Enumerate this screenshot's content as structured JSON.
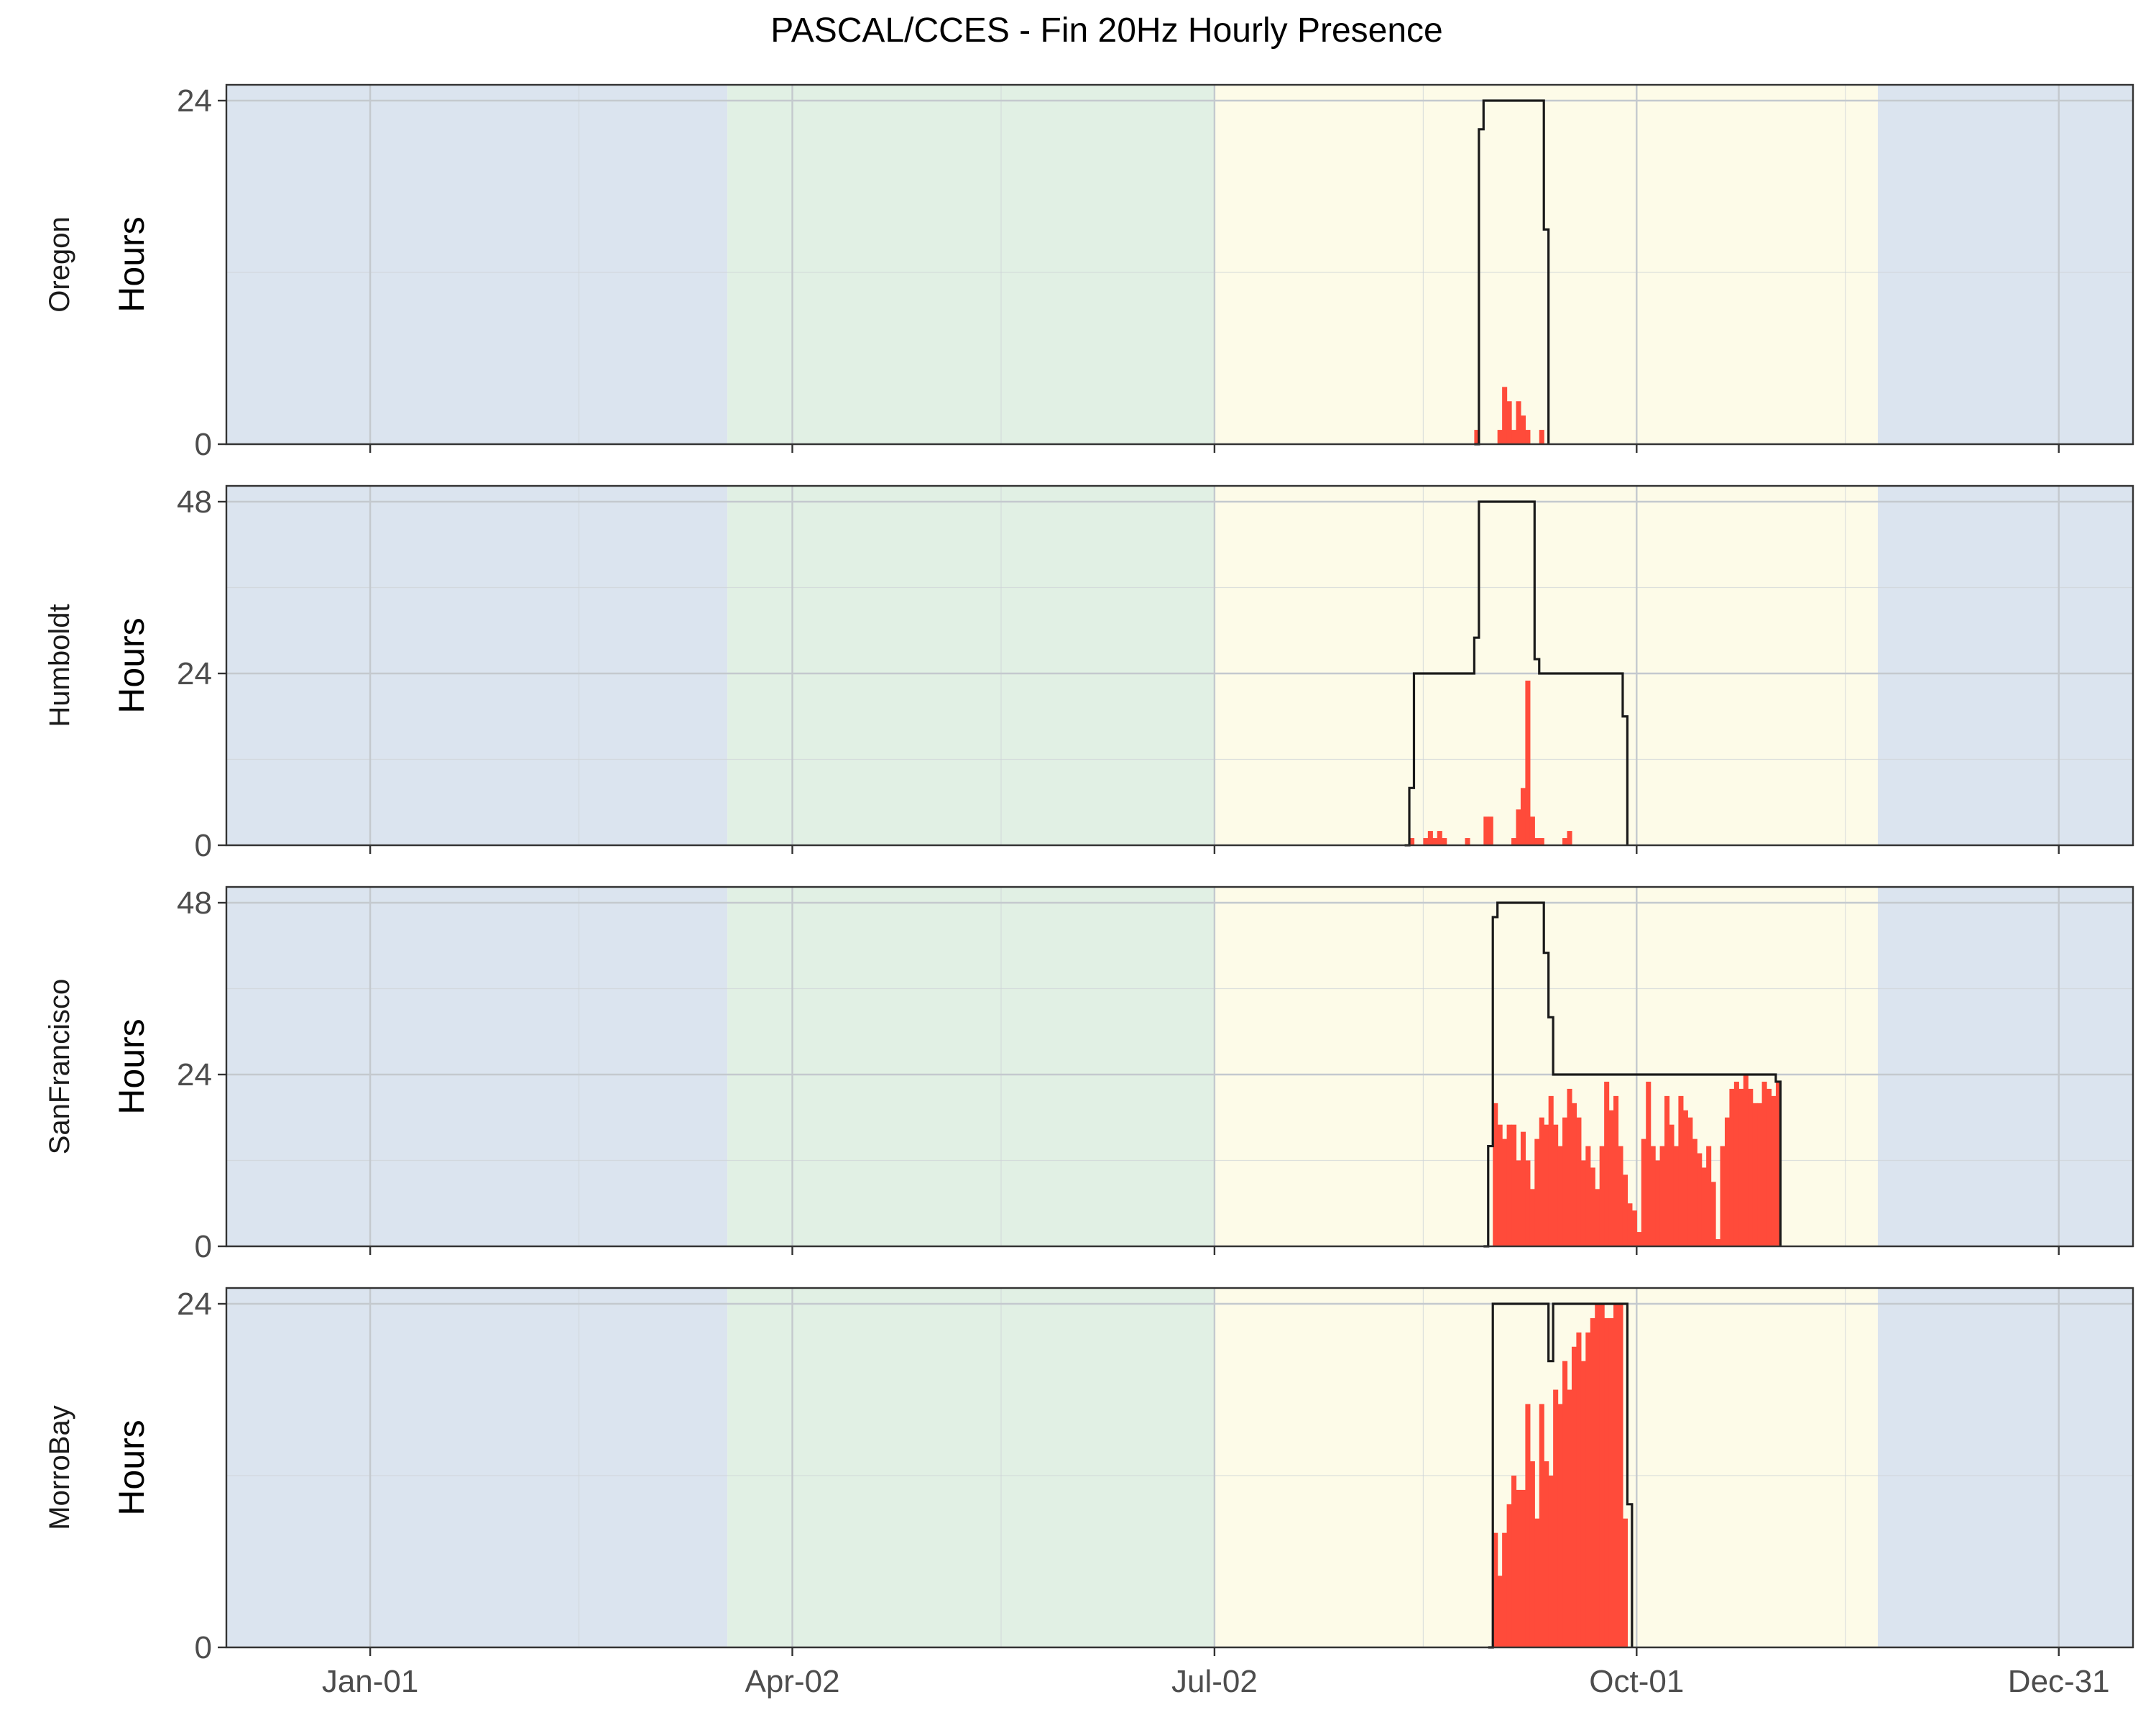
{
  "chart_data": {
    "type": "bar",
    "title": "PASCAL/CCES - Fin 20Hz Hourly Presence",
    "ylabel": "Hours",
    "x_axis": {
      "type": "date",
      "range": [
        "2018-12-01",
        "2020-01-16"
      ],
      "ticks": [
        "2019-01-01",
        "2019-04-02",
        "2019-07-02",
        "2019-10-01",
        "2019-12-31"
      ],
      "tick_labels": [
        "Jan-01",
        "Apr-02",
        "Jul-02",
        "Oct-01",
        "Dec-31"
      ]
    },
    "season_bands": [
      {
        "start": "2018-12-01",
        "end": "2019-03-19",
        "color": "#dbe4ef"
      },
      {
        "start": "2019-03-19",
        "end": "2019-07-02",
        "color": "#e1f0e4"
      },
      {
        "start": "2019-07-02",
        "end": "2019-11-22",
        "color": "#fdfbe8"
      },
      {
        "start": "2019-11-22",
        "end": "2020-01-16",
        "color": "#dbe4ef"
      }
    ],
    "bar_color": "#ff4b3a",
    "effort_color": "#1a1a1a",
    "grid": true,
    "panels": [
      {
        "name": "Oregon",
        "ylim": [
          0,
          24
        ],
        "yticks": [
          0,
          24
        ],
        "effort": [
          [
            "2019-08-27",
            0
          ],
          [
            "2019-08-28",
            22
          ],
          [
            "2019-08-29",
            24
          ],
          [
            "2019-09-11",
            15
          ],
          [
            "2019-09-12",
            0
          ]
        ],
        "presence": [
          [
            "2019-08-27",
            1
          ],
          [
            "2019-09-01",
            1
          ],
          [
            "2019-09-02",
            4
          ],
          [
            "2019-09-03",
            3
          ],
          [
            "2019-09-04",
            1
          ],
          [
            "2019-09-05",
            3
          ],
          [
            "2019-09-06",
            2
          ],
          [
            "2019-09-07",
            1
          ],
          [
            "2019-09-10",
            1
          ]
        ]
      },
      {
        "name": "Humboldt",
        "ylim": [
          0,
          48
        ],
        "yticks": [
          0,
          24,
          48
        ],
        "effort": [
          [
            "2019-08-12",
            0
          ],
          [
            "2019-08-13",
            8
          ],
          [
            "2019-08-14",
            24
          ],
          [
            "2019-08-27",
            29
          ],
          [
            "2019-08-28",
            48
          ],
          [
            "2019-09-09",
            26
          ],
          [
            "2019-09-10",
            24
          ],
          [
            "2019-09-28",
            18
          ],
          [
            "2019-09-29",
            0
          ]
        ],
        "presence": [
          [
            "2019-08-13",
            1
          ],
          [
            "2019-08-16",
            1
          ],
          [
            "2019-08-17",
            2
          ],
          [
            "2019-08-18",
            1
          ],
          [
            "2019-08-19",
            2
          ],
          [
            "2019-08-20",
            1
          ],
          [
            "2019-08-25",
            1
          ],
          [
            "2019-08-29",
            4
          ],
          [
            "2019-08-30",
            4
          ],
          [
            "2019-09-04",
            1
          ],
          [
            "2019-09-05",
            5
          ],
          [
            "2019-09-06",
            8
          ],
          [
            "2019-09-07",
            23
          ],
          [
            "2019-09-08",
            4
          ],
          [
            "2019-09-09",
            1
          ],
          [
            "2019-09-10",
            1
          ],
          [
            "2019-09-15",
            1
          ],
          [
            "2019-09-16",
            2
          ]
        ]
      },
      {
        "name": "SanFrancisco",
        "ylim": [
          0,
          48
        ],
        "yticks": [
          0,
          24,
          48
        ],
        "effort": [
          [
            "2019-08-29",
            0
          ],
          [
            "2019-08-30",
            14
          ],
          [
            "2019-08-31",
            46
          ],
          [
            "2019-09-01",
            48
          ],
          [
            "2019-09-11",
            41
          ],
          [
            "2019-09-12",
            32
          ],
          [
            "2019-09-13",
            24
          ],
          [
            "2019-10-20",
            24
          ],
          [
            "2019-10-31",
            23
          ],
          [
            "2019-11-01",
            0
          ]
        ],
        "presence": [
          [
            "2019-08-31",
            20
          ],
          [
            "2019-09-01",
            17
          ],
          [
            "2019-09-02",
            15
          ],
          [
            "2019-09-03",
            17
          ],
          [
            "2019-09-04",
            17
          ],
          [
            "2019-09-05",
            12
          ],
          [
            "2019-09-06",
            16
          ],
          [
            "2019-09-07",
            12
          ],
          [
            "2019-09-08",
            8
          ],
          [
            "2019-09-09",
            15
          ],
          [
            "2019-09-10",
            18
          ],
          [
            "2019-09-11",
            17
          ],
          [
            "2019-09-12",
            21
          ],
          [
            "2019-09-13",
            17
          ],
          [
            "2019-09-14",
            14
          ],
          [
            "2019-09-15",
            18
          ],
          [
            "2019-09-16",
            22
          ],
          [
            "2019-09-17",
            20
          ],
          [
            "2019-09-18",
            18
          ],
          [
            "2019-09-19",
            12
          ],
          [
            "2019-09-20",
            14
          ],
          [
            "2019-09-21",
            11
          ],
          [
            "2019-09-22",
            8
          ],
          [
            "2019-09-23",
            14
          ],
          [
            "2019-09-24",
            23
          ],
          [
            "2019-09-25",
            19
          ],
          [
            "2019-09-26",
            21
          ],
          [
            "2019-09-27",
            14
          ],
          [
            "2019-09-28",
            10
          ],
          [
            "2019-09-29",
            6
          ],
          [
            "2019-09-30",
            5
          ],
          [
            "2019-10-01",
            2
          ],
          [
            "2019-10-02",
            15
          ],
          [
            "2019-10-03",
            23
          ],
          [
            "2019-10-04",
            14
          ],
          [
            "2019-10-05",
            12
          ],
          [
            "2019-10-06",
            14
          ],
          [
            "2019-10-07",
            21
          ],
          [
            "2019-10-08",
            17
          ],
          [
            "2019-10-09",
            14
          ],
          [
            "2019-10-10",
            21
          ],
          [
            "2019-10-11",
            19
          ],
          [
            "2019-10-12",
            18
          ],
          [
            "2019-10-13",
            15
          ],
          [
            "2019-10-14",
            13
          ],
          [
            "2019-10-15",
            11
          ],
          [
            "2019-10-16",
            14
          ],
          [
            "2019-10-17",
            9
          ],
          [
            "2019-10-18",
            1
          ],
          [
            "2019-10-19",
            14
          ],
          [
            "2019-10-20",
            18
          ],
          [
            "2019-10-21",
            22
          ],
          [
            "2019-10-22",
            23
          ],
          [
            "2019-10-23",
            22
          ],
          [
            "2019-10-24",
            24
          ],
          [
            "2019-10-25",
            22
          ],
          [
            "2019-10-26",
            20
          ],
          [
            "2019-10-27",
            20
          ],
          [
            "2019-10-28",
            23
          ],
          [
            "2019-10-29",
            22
          ],
          [
            "2019-10-30",
            21
          ],
          [
            "2019-10-31",
            23
          ]
        ]
      },
      {
        "name": "MorroBay",
        "ylim": [
          0,
          24
        ],
        "yticks": [
          0,
          24
        ],
        "effort": [
          [
            "2019-08-30",
            0
          ],
          [
            "2019-08-31",
            24
          ],
          [
            "2019-09-12",
            20
          ],
          [
            "2019-09-13",
            24
          ],
          [
            "2019-09-29",
            10
          ],
          [
            "2019-09-30",
            0
          ]
        ],
        "presence": [
          [
            "2019-08-31",
            8
          ],
          [
            "2019-09-01",
            5
          ],
          [
            "2019-09-02",
            8
          ],
          [
            "2019-09-03",
            10
          ],
          [
            "2019-09-04",
            12
          ],
          [
            "2019-09-05",
            11
          ],
          [
            "2019-09-06",
            11
          ],
          [
            "2019-09-07",
            17
          ],
          [
            "2019-09-08",
            13
          ],
          [
            "2019-09-09",
            9
          ],
          [
            "2019-09-10",
            17
          ],
          [
            "2019-09-11",
            13
          ],
          [
            "2019-09-12",
            12
          ],
          [
            "2019-09-13",
            18
          ],
          [
            "2019-09-14",
            17
          ],
          [
            "2019-09-15",
            20
          ],
          [
            "2019-09-16",
            18
          ],
          [
            "2019-09-17",
            21
          ],
          [
            "2019-09-18",
            22
          ],
          [
            "2019-09-19",
            20
          ],
          [
            "2019-09-20",
            22
          ],
          [
            "2019-09-21",
            23
          ],
          [
            "2019-09-22",
            24
          ],
          [
            "2019-09-23",
            24
          ],
          [
            "2019-09-24",
            23
          ],
          [
            "2019-09-25",
            23
          ],
          [
            "2019-09-26",
            24
          ],
          [
            "2019-09-27",
            24
          ],
          [
            "2019-09-28",
            9
          ]
        ]
      }
    ]
  }
}
